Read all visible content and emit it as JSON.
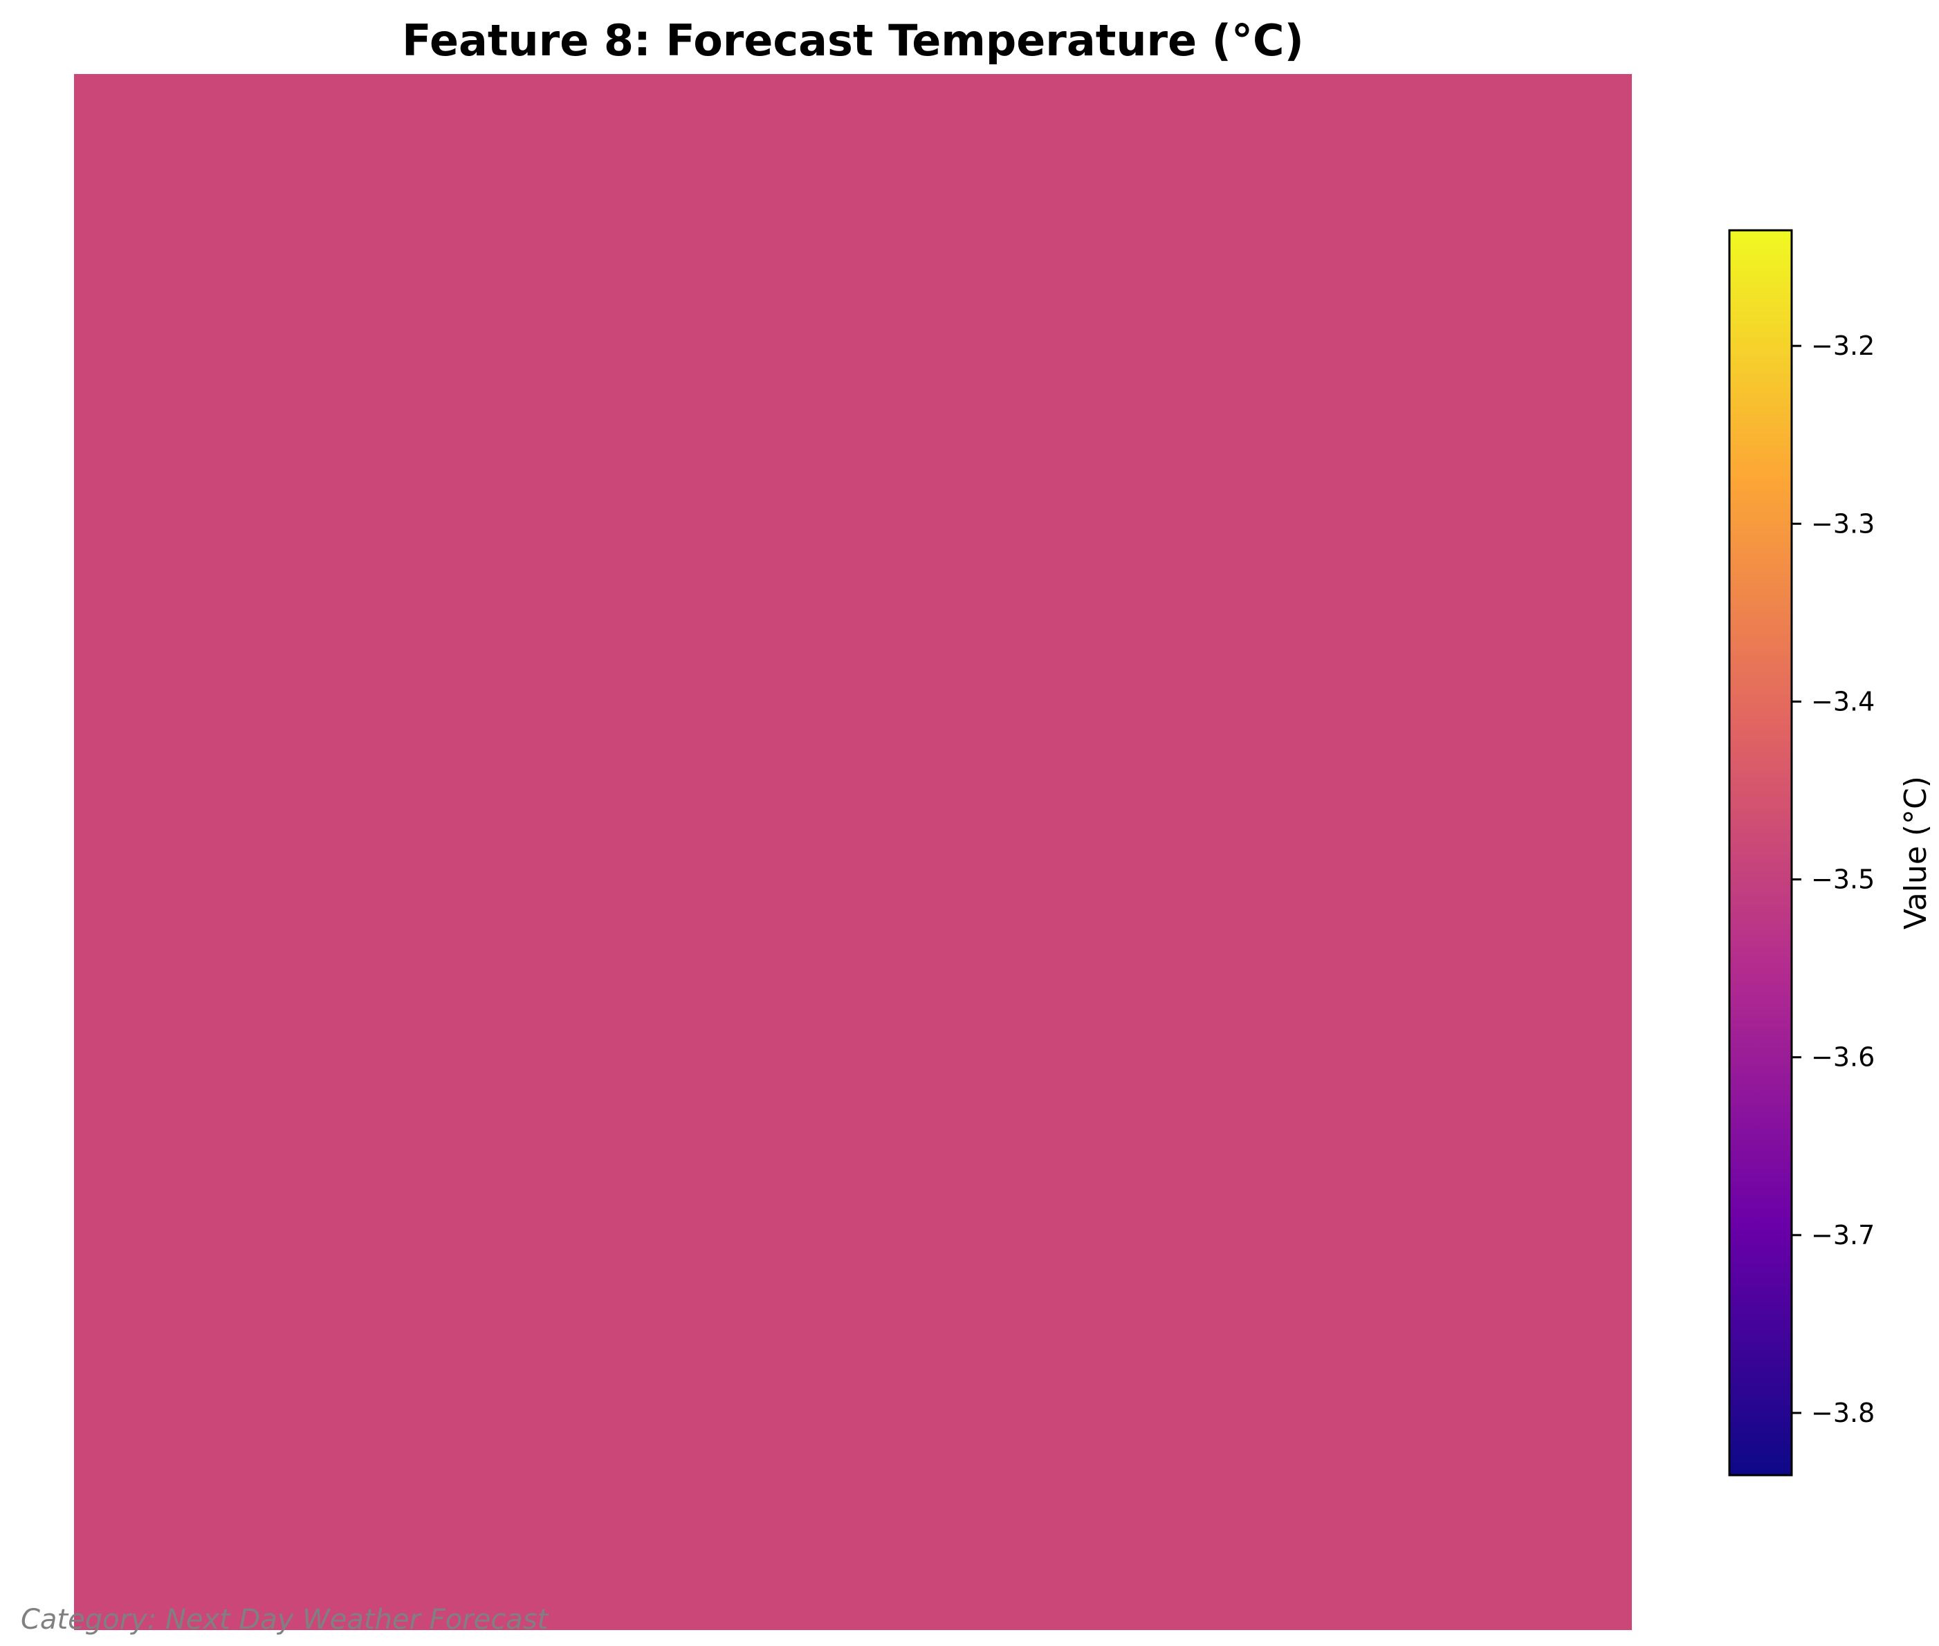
{
  "chart_data": {
    "type": "heatmap",
    "title": "Feature 8: Forecast Temperature (°C)",
    "grid": false,
    "axes_visible": false,
    "values": [
      [
        -3.47
      ]
    ],
    "cell_color": "#CB4778",
    "colormap": "plasma",
    "colormap_stops": [
      "#0D0887",
      "#6A00A8",
      "#B12A90",
      "#E16462",
      "#FCA636",
      "#F0F921"
    ],
    "colorbar": {
      "label": "Value (°C)",
      "range": [
        -3.835,
        -3.135
      ],
      "ticks": [
        -3.2,
        -3.3,
        -3.4,
        -3.5,
        -3.6,
        -3.7,
        -3.8
      ],
      "tick_labels": [
        "−3.2",
        "−3.3",
        "−3.4",
        "−3.5",
        "−3.6",
        "−3.7",
        "−3.8"
      ],
      "placement": "right"
    }
  },
  "footnote": "Category: Next Day Weather Forecast"
}
